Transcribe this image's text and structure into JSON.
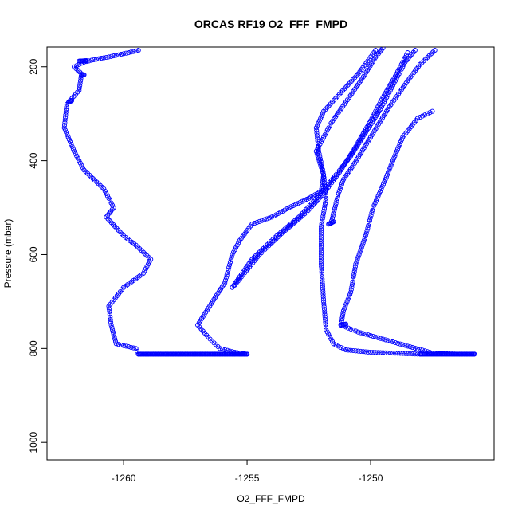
{
  "chart_data": {
    "type": "scatter",
    "title": "ORCAS RF19 O2_FFF_FMPD",
    "xlabel": "O2_FFF_FMPD",
    "ylabel": "Pressure (mbar)",
    "xlim": [
      -1263.1,
      -1245.0
    ],
    "ylim": [
      1037,
      158
    ],
    "y_reversed": true,
    "x_ticks": [
      -1260,
      -1255,
      -1250
    ],
    "y_ticks": [
      200,
      400,
      600,
      800,
      1000
    ],
    "grid": false,
    "legend": "none",
    "marker": "open-circle",
    "color": "#0000ff",
    "series": [
      {
        "points": [
          [
            -1248.0,
            812
          ],
          [
            -1249.0,
            810
          ],
          [
            -1250.0,
            808
          ],
          [
            -1251.0,
            803
          ],
          [
            -1251.5,
            790
          ],
          [
            -1251.8,
            760
          ],
          [
            -1251.9,
            700
          ],
          [
            -1252.0,
            620
          ],
          [
            -1252.0,
            540
          ],
          [
            -1251.8,
            480
          ],
          [
            -1251.9,
            430
          ],
          [
            -1252.1,
            380
          ],
          [
            -1252.2,
            330
          ],
          [
            -1251.9,
            295
          ],
          [
            -1251.2,
            255
          ],
          [
            -1250.5,
            215
          ],
          [
            -1249.8,
            165
          ]
        ]
      },
      {
        "points": [
          [
            -1251.6,
            533
          ],
          [
            -1251.3,
            470
          ],
          [
            -1251.1,
            440
          ],
          [
            -1250.7,
            410
          ],
          [
            -1250.0,
            350
          ],
          [
            -1249.3,
            290
          ],
          [
            -1248.5,
            230
          ],
          [
            -1248.0,
            195
          ],
          [
            -1247.4,
            165
          ]
        ]
      },
      {
        "points": [
          [
            -1251.2,
            750
          ],
          [
            -1251.1,
            720
          ],
          [
            -1250.8,
            680
          ],
          [
            -1250.6,
            620
          ],
          [
            -1250.2,
            560
          ],
          [
            -1249.9,
            500
          ],
          [
            -1249.4,
            440
          ],
          [
            -1249.1,
            400
          ],
          [
            -1248.7,
            350
          ],
          [
            -1248.1,
            310
          ],
          [
            -1247.5,
            295
          ]
        ]
      },
      {
        "points": [
          [
            -1251.2,
            750
          ],
          [
            -1250.5,
            765
          ],
          [
            -1249.5,
            780
          ],
          [
            -1248.5,
            795
          ],
          [
            -1247.8,
            805
          ],
          [
            -1247.5,
            810
          ],
          [
            -1246.5,
            812
          ],
          [
            -1245.8,
            812
          ]
        ]
      },
      {
        "points": [
          [
            -1255.6,
            670
          ],
          [
            -1254.8,
            610
          ],
          [
            -1253.8,
            560
          ],
          [
            -1252.9,
            520
          ],
          [
            -1252.1,
            475
          ],
          [
            -1251.4,
            430
          ],
          [
            -1250.8,
            390
          ],
          [
            -1250.2,
            340
          ],
          [
            -1249.6,
            290
          ],
          [
            -1249.1,
            240
          ],
          [
            -1248.6,
            190
          ],
          [
            -1248.2,
            165
          ]
        ]
      },
      {
        "points": [
          [
            -1255.5,
            665
          ],
          [
            -1254.5,
            600
          ],
          [
            -1253.6,
            555
          ],
          [
            -1252.6,
            510
          ],
          [
            -1251.9,
            470
          ],
          [
            -1251.2,
            420
          ],
          [
            -1250.6,
            370
          ],
          [
            -1250.0,
            315
          ],
          [
            -1249.5,
            265
          ],
          [
            -1249.0,
            220
          ],
          [
            -1248.5,
            170
          ]
        ]
      },
      {
        "points": [
          [
            -1259.4,
            812
          ],
          [
            -1258.0,
            812
          ],
          [
            -1257.0,
            812
          ],
          [
            -1256.2,
            812
          ],
          [
            -1255.0,
            812
          ],
          [
            -1255.5,
            808
          ],
          [
            -1256.1,
            800
          ],
          [
            -1256.5,
            780
          ],
          [
            -1257.0,
            750
          ],
          [
            -1256.4,
            700
          ],
          [
            -1255.9,
            660
          ],
          [
            -1255.6,
            600
          ],
          [
            -1255.3,
            570
          ],
          [
            -1254.8,
            535
          ],
          [
            -1254.0,
            520
          ],
          [
            -1253.3,
            500
          ],
          [
            -1252.5,
            480
          ],
          [
            -1252.0,
            465
          ],
          [
            -1251.9,
            430
          ],
          [
            -1252.2,
            380
          ],
          [
            -1251.6,
            320
          ],
          [
            -1251.0,
            275
          ],
          [
            -1250.4,
            230
          ],
          [
            -1249.8,
            180
          ],
          [
            -1249.5,
            160
          ]
        ]
      },
      {
        "points": [
          [
            -1259.4,
            812
          ],
          [
            -1259.5,
            800
          ],
          [
            -1260.3,
            790
          ],
          [
            -1260.5,
            750
          ],
          [
            -1260.6,
            710
          ],
          [
            -1260.0,
            670
          ],
          [
            -1259.2,
            640
          ],
          [
            -1258.9,
            610
          ],
          [
            -1259.5,
            580
          ],
          [
            -1260.0,
            560
          ],
          [
            -1260.7,
            520
          ],
          [
            -1260.4,
            500
          ],
          [
            -1260.8,
            460
          ],
          [
            -1261.6,
            420
          ],
          [
            -1262.0,
            380
          ],
          [
            -1262.4,
            330
          ],
          [
            -1262.3,
            280
          ],
          [
            -1261.8,
            250
          ],
          [
            -1261.7,
            215
          ],
          [
            -1262.0,
            200
          ],
          [
            -1261.6,
            190
          ],
          [
            -1261.2,
            185
          ],
          [
            -1260.5,
            178
          ],
          [
            -1259.8,
            170
          ],
          [
            -1259.4,
            165
          ]
        ]
      }
    ],
    "dense_segments": [
      {
        "from": [
          -1259.4,
          812
        ],
        "to": [
          -1255.0,
          812
        ]
      },
      {
        "from": [
          -1248.0,
          812
        ],
        "to": [
          -1245.8,
          812
        ]
      },
      {
        "from": [
          -1251.2,
          750
        ],
        "to": [
          -1251.0,
          748
        ]
      },
      {
        "from": [
          -1262.2,
          275
        ],
        "to": [
          -1262.1,
          272
        ]
      },
      {
        "from": [
          -1261.8,
          188
        ],
        "to": [
          -1261.5,
          187
        ]
      },
      {
        "from": [
          -1261.7,
          218
        ],
        "to": [
          -1261.6,
          217
        ]
      },
      {
        "from": [
          -1251.7,
          535
        ],
        "to": [
          -1251.5,
          530
        ]
      }
    ]
  }
}
